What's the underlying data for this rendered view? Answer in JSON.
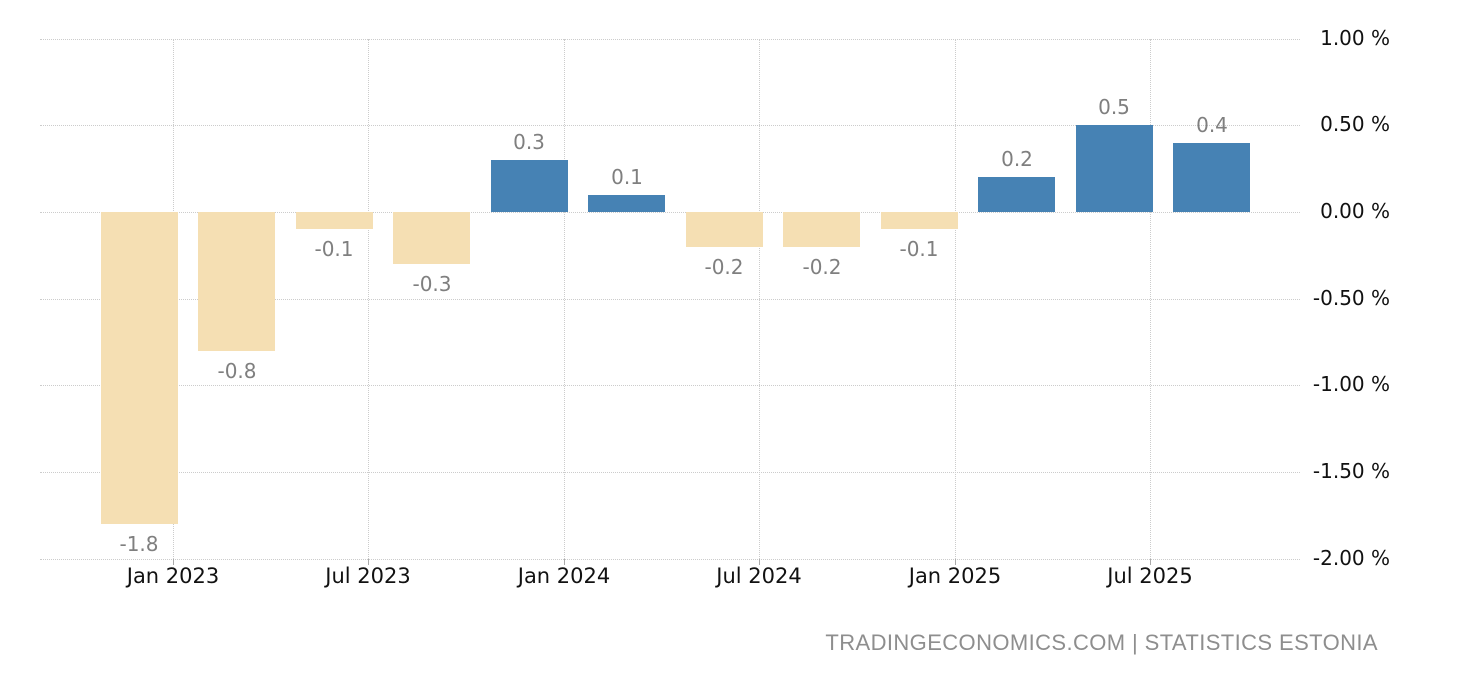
{
  "chart_data": {
    "type": "bar",
    "title": "",
    "values": [
      -1.8,
      -0.8,
      -0.1,
      -0.3,
      0.3,
      0.1,
      -0.2,
      -0.2,
      -0.1,
      0.2,
      0.5,
      0.4
    ],
    "bar_value_labels": [
      "-1.8",
      "-0.8",
      "-0.1",
      "-0.3",
      "0.3",
      "0.1",
      "-0.2",
      "-0.2",
      "-0.1",
      "0.2",
      "0.5",
      "0.4"
    ],
    "x_tick_labels": [
      "Jan 2023",
      "Jul 2023",
      "Jan 2024",
      "Jul 2024",
      "Jan 2025",
      "Jul 2025"
    ],
    "y_ticks": [
      1.0,
      0.5,
      0.0,
      -0.5,
      -1.0,
      -1.5,
      -2.0
    ],
    "y_tick_labels": [
      "1.00 %",
      "0.50 %",
      "0.00 %",
      "-0.50 %",
      "-1.00 %",
      "-1.50 %",
      "-2.00 %"
    ],
    "ylim": [
      -2.0,
      1.0
    ],
    "xlabel": "",
    "ylabel": "",
    "legend_position": "none",
    "grid": {
      "horizontal": true,
      "vertical": true,
      "style": "dotted"
    },
    "colors": {
      "positive_bar": "#4682b4",
      "negative_bar": "#f5dfb3",
      "gridline": "#cccccc",
      "value_label": "#7f7f7f",
      "axis_label": "#111111",
      "attribution_text": "#8e8e8e",
      "background": "#ffffff"
    }
  },
  "attribution": {
    "text": "TRADINGECONOMICS.COM | STATISTICS ESTONIA"
  }
}
